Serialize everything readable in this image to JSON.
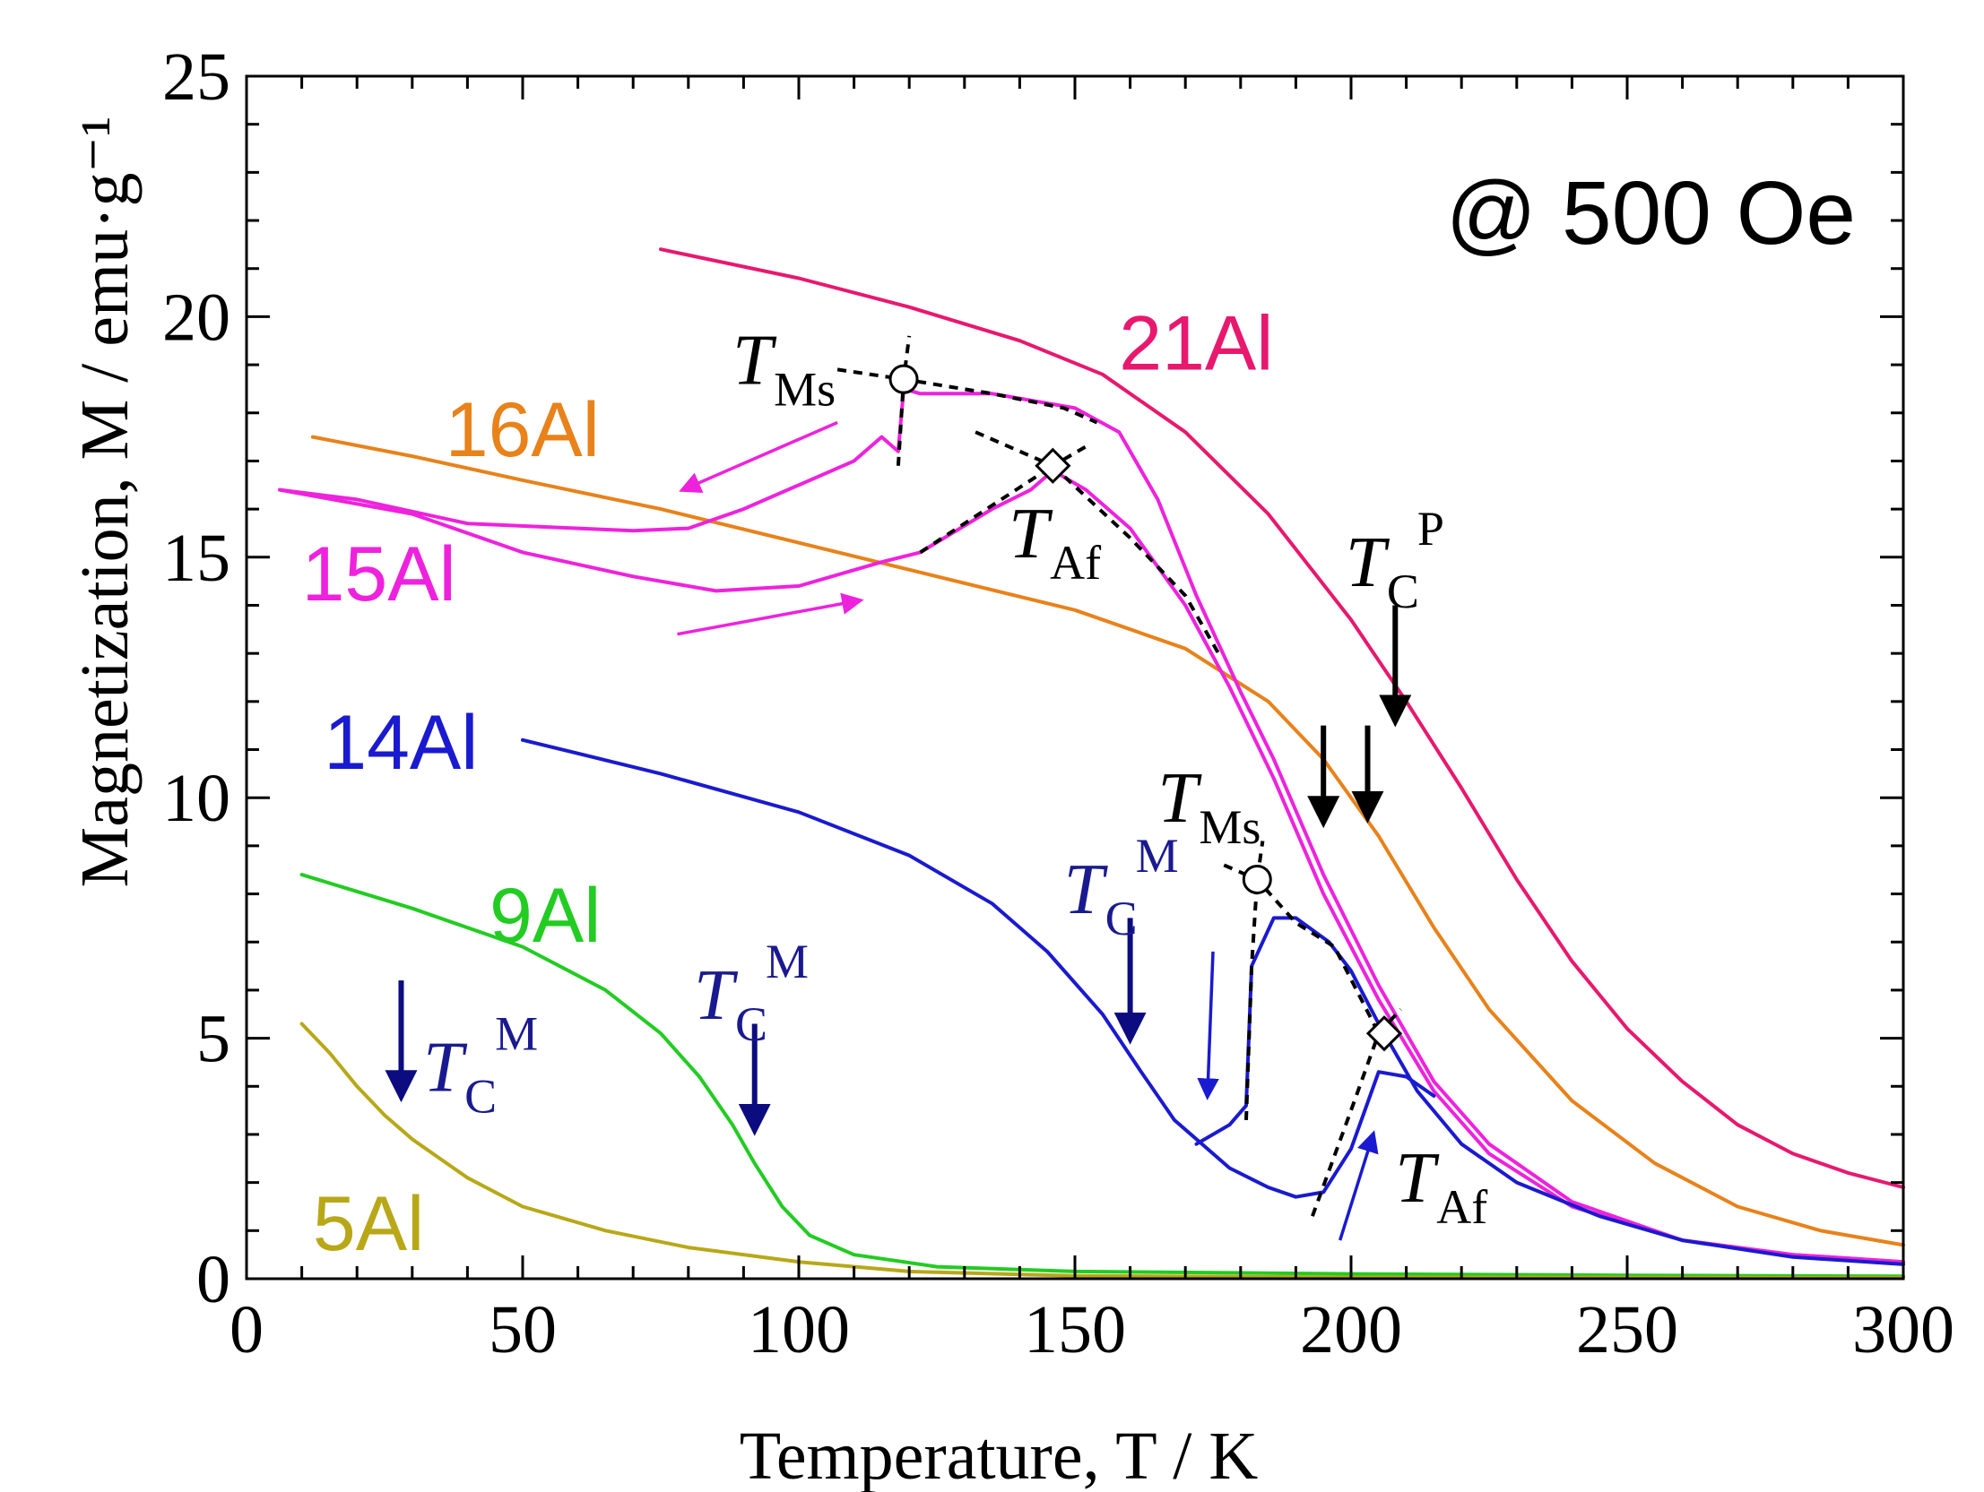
{
  "chart_data": {
    "type": "line",
    "title": "",
    "xlabel": "Temperature, T / K",
    "ylabel": "Magnetization, M / emu·g⁻¹",
    "xlim": [
      0,
      300
    ],
    "ylim": [
      0,
      25
    ],
    "xticks": [
      0,
      50,
      100,
      150,
      200,
      250,
      300
    ],
    "yticks": [
      0,
      5,
      10,
      15,
      20,
      25
    ],
    "field_label": "@ 500 Oe",
    "colors": {
      "21Al": "#e8186e",
      "16Al": "#e8821a",
      "15Al": "#ee22dd",
      "14Al": "#1a1ad0",
      "9Al": "#22cc22",
      "5Al": "#b8a818",
      "arrow_dark": "#0c0c80",
      "arrow_black": "#000000"
    },
    "series": [
      {
        "name": "21Al",
        "label": "21Al",
        "points": [
          [
            75,
            21.4
          ],
          [
            100,
            20.8
          ],
          [
            120,
            20.2
          ],
          [
            140,
            19.5
          ],
          [
            155,
            18.8
          ],
          [
            170,
            17.6
          ],
          [
            185,
            15.9
          ],
          [
            200,
            13.7
          ],
          [
            210,
            12.0
          ],
          [
            220,
            10.2
          ],
          [
            230,
            8.3
          ],
          [
            240,
            6.6
          ],
          [
            250,
            5.2
          ],
          [
            260,
            4.1
          ],
          [
            270,
            3.2
          ],
          [
            280,
            2.6
          ],
          [
            290,
            2.2
          ],
          [
            300,
            1.9
          ]
        ]
      },
      {
        "name": "16Al",
        "label": "16Al",
        "points": [
          [
            12,
            17.5
          ],
          [
            30,
            17.1
          ],
          [
            50,
            16.6
          ],
          [
            75,
            16.0
          ],
          [
            100,
            15.3
          ],
          [
            125,
            14.6
          ],
          [
            150,
            13.9
          ],
          [
            170,
            13.1
          ],
          [
            185,
            12.0
          ],
          [
            195,
            10.8
          ],
          [
            205,
            9.2
          ],
          [
            215,
            7.3
          ],
          [
            225,
            5.6
          ],
          [
            240,
            3.7
          ],
          [
            255,
            2.4
          ],
          [
            270,
            1.5
          ],
          [
            285,
            1.0
          ],
          [
            300,
            0.7
          ]
        ]
      },
      {
        "name": "15Al-heating",
        "label": "15Al",
        "points": [
          [
            6,
            16.4
          ],
          [
            30,
            15.9
          ],
          [
            50,
            15.1
          ],
          [
            70,
            14.6
          ],
          [
            85,
            14.3
          ],
          [
            100,
            14.4
          ],
          [
            115,
            14.9
          ],
          [
            122,
            15.1
          ],
          [
            135,
            16.0
          ],
          [
            142,
            16.4
          ],
          [
            146,
            16.8
          ],
          [
            152,
            16.4
          ],
          [
            160,
            15.6
          ],
          [
            170,
            14.0
          ],
          [
            178,
            12.3
          ],
          [
            186,
            10.4
          ],
          [
            195,
            8.0
          ],
          [
            205,
            5.8
          ],
          [
            215,
            3.9
          ],
          [
            225,
            2.6
          ],
          [
            240,
            1.5
          ],
          [
            260,
            0.8
          ],
          [
            280,
            0.5
          ],
          [
            300,
            0.35
          ]
        ]
      },
      {
        "name": "15Al-cooling",
        "label": "",
        "points": [
          [
            300,
            0.35
          ],
          [
            280,
            0.5
          ],
          [
            260,
            0.8
          ],
          [
            240,
            1.6
          ],
          [
            225,
            2.8
          ],
          [
            215,
            4.1
          ],
          [
            205,
            6.1
          ],
          [
            195,
            8.4
          ],
          [
            186,
            10.8
          ],
          [
            180,
            12.2
          ],
          [
            172,
            14.2
          ],
          [
            165,
            16.2
          ],
          [
            158,
            17.6
          ],
          [
            150,
            18.1
          ],
          [
            135,
            18.4
          ],
          [
            122,
            18.4
          ],
          [
            119,
            18.5
          ],
          [
            118,
            17.2
          ],
          [
            115,
            17.5
          ],
          [
            110,
            17.0
          ],
          [
            100,
            16.5
          ],
          [
            90,
            16.0
          ],
          [
            80,
            15.6
          ],
          [
            70,
            15.55
          ],
          [
            60,
            15.6
          ],
          [
            40,
            15.7
          ],
          [
            20,
            16.2
          ],
          [
            6,
            16.4
          ]
        ]
      },
      {
        "name": "14Al-cooling",
        "label": "14Al",
        "points": [
          [
            50,
            11.2
          ],
          [
            75,
            10.5
          ],
          [
            100,
            9.7
          ],
          [
            120,
            8.8
          ],
          [
            135,
            7.8
          ],
          [
            145,
            6.8
          ],
          [
            155,
            5.5
          ],
          [
            162,
            4.3
          ],
          [
            168,
            3.3
          ],
          [
            172,
            2.9
          ],
          [
            178,
            2.3
          ],
          [
            185,
            1.9
          ],
          [
            190,
            1.7
          ],
          [
            195,
            1.8
          ],
          [
            200,
            2.7
          ],
          [
            205,
            4.3
          ],
          [
            210,
            4.2
          ],
          [
            215,
            3.8
          ]
        ]
      },
      {
        "name": "14Al-heating",
        "label": "",
        "points": [
          [
            172,
            2.8
          ],
          [
            178,
            3.2
          ],
          [
            181,
            3.6
          ],
          [
            182,
            6.5
          ],
          [
            186,
            7.5
          ],
          [
            190,
            7.5
          ],
          [
            196,
            7.0
          ],
          [
            200,
            6.4
          ],
          [
            205,
            5.3
          ],
          [
            212,
            3.9
          ],
          [
            220,
            2.8
          ],
          [
            230,
            2.0
          ],
          [
            245,
            1.3
          ],
          [
            260,
            0.8
          ],
          [
            280,
            0.45
          ],
          [
            300,
            0.3
          ]
        ]
      },
      {
        "name": "9Al",
        "label": "9Al",
        "points": [
          [
            10,
            8.4
          ],
          [
            30,
            7.7
          ],
          [
            50,
            6.9
          ],
          [
            65,
            6.0
          ],
          [
            75,
            5.1
          ],
          [
            82,
            4.2
          ],
          [
            88,
            3.2
          ],
          [
            92,
            2.4
          ],
          [
            97,
            1.5
          ],
          [
            102,
            0.9
          ],
          [
            110,
            0.5
          ],
          [
            125,
            0.25
          ],
          [
            150,
            0.15
          ],
          [
            200,
            0.1
          ],
          [
            250,
            0.07
          ],
          [
            300,
            0.05
          ]
        ]
      },
      {
        "name": "5Al",
        "label": "5Al",
        "points": [
          [
            10,
            5.3
          ],
          [
            15,
            4.7
          ],
          [
            20,
            4.0
          ],
          [
            25,
            3.4
          ],
          [
            30,
            2.9
          ],
          [
            40,
            2.1
          ],
          [
            50,
            1.5
          ],
          [
            65,
            1.0
          ],
          [
            80,
            0.65
          ],
          [
            100,
            0.35
          ],
          [
            120,
            0.15
          ],
          [
            150,
            0.06
          ],
          [
            200,
            0.03
          ],
          [
            300,
            0.02
          ]
        ]
      }
    ],
    "fit_lines": [
      {
        "name": "15Al-TMs-horizontal",
        "points": [
          [
            107,
            18.9
          ],
          [
            119,
            18.7
          ],
          [
            135,
            18.4
          ],
          [
            148,
            18.1
          ],
          [
            154,
            17.8
          ]
        ]
      },
      {
        "name": "15Al-TMs-vertical",
        "points": [
          [
            118,
            16.9
          ],
          [
            119,
            18.7
          ],
          [
            120,
            19.6
          ]
        ]
      },
      {
        "name": "15Al-TAf-left",
        "points": [
          [
            122,
            15.1
          ],
          [
            146,
            16.9
          ]
        ]
      },
      {
        "name": "15Al-TAf-upper",
        "points": [
          [
            132,
            17.6
          ],
          [
            146,
            16.9
          ],
          [
            152,
            17.3
          ]
        ]
      },
      {
        "name": "15Al-TAf-right",
        "points": [
          [
            146,
            16.9
          ],
          [
            160,
            15.4
          ],
          [
            170,
            14.2
          ],
          [
            176,
            13.0
          ]
        ]
      },
      {
        "name": "14Al-TMs-horizontal",
        "points": [
          [
            177,
            8.6
          ],
          [
            183,
            8.3
          ],
          [
            190,
            7.4
          ],
          [
            197,
            6.9
          ],
          [
            205,
            5.1
          ]
        ]
      },
      {
        "name": "14Al-TMs-vertical",
        "points": [
          [
            181,
            3.3
          ],
          [
            182,
            6.5
          ],
          [
            183,
            8.3
          ],
          [
            184,
            9.1
          ]
        ]
      },
      {
        "name": "14Al-TAf-left",
        "points": [
          [
            193,
            1.3
          ],
          [
            200,
            3.5
          ],
          [
            205,
            5.1
          ]
        ]
      },
      {
        "name": "14Al-TAf-upper",
        "points": [
          [
            205,
            5.1
          ],
          [
            209,
            5.6
          ]
        ]
      }
    ],
    "markers": [
      {
        "name": "15Al-TMs",
        "shape": "circle",
        "x": 119,
        "y": 18.7
      },
      {
        "name": "15Al-TAf",
        "shape": "diamond",
        "x": 146,
        "y": 16.9
      },
      {
        "name": "14Al-TMs",
        "shape": "circle",
        "x": 183,
        "y": 8.3
      },
      {
        "name": "14Al-TAf",
        "shape": "diamond",
        "x": 206,
        "y": 5.1
      }
    ],
    "series_labels": [
      {
        "name": "21Al",
        "text": "21Al",
        "x": 158,
        "y": 18.9,
        "color": "21Al"
      },
      {
        "name": "16Al",
        "text": "16Al",
        "x": 36,
        "y": 17.1,
        "color": "16Al"
      },
      {
        "name": "15Al",
        "text": "15Al",
        "x": 10,
        "y": 14.1,
        "color": "15Al"
      },
      {
        "name": "14Al",
        "text": "14Al",
        "x": 14,
        "y": 10.6,
        "color": "14Al"
      },
      {
        "name": "9Al",
        "text": "9Al",
        "x": 44,
        "y": 7.0,
        "color": "9Al"
      },
      {
        "name": "5Al",
        "text": "5Al",
        "x": 12,
        "y": 0.6,
        "color": "5Al"
      }
    ],
    "annotations": [
      {
        "name": "15Al-TMs-label",
        "main": "T",
        "sub": "Ms",
        "sup": "",
        "x": 88,
        "y": 18.6,
        "color": "#000000"
      },
      {
        "name": "15Al-TAf-label",
        "main": "T",
        "sub": "Af",
        "sup": "",
        "x": 138,
        "y": 15.0,
        "color": "#000000"
      },
      {
        "name": "TCP-label",
        "main": "T",
        "sub": "C",
        "sup": "P",
        "x": 199,
        "y": 14.4,
        "color": "#000000"
      },
      {
        "name": "14Al-TMs-label",
        "main": "T",
        "sub": "Ms",
        "sup": "",
        "x": 165,
        "y": 9.5,
        "color": "#000000"
      },
      {
        "name": "14Al-TAf-label",
        "main": "T",
        "sub": "Af",
        "sup": "",
        "x": 208,
        "y": 1.6,
        "color": "#000000"
      },
      {
        "name": "14Al-TCM-label",
        "main": "T",
        "sub": "C",
        "sup": "M",
        "x": 148,
        "y": 7.6,
        "color": "#1a1a90"
      },
      {
        "name": "9Al-TCM-label",
        "main": "T",
        "sub": "C",
        "sup": "M",
        "x": 81,
        "y": 5.4,
        "color": "#1a1a90"
      },
      {
        "name": "5Al-TCM-label",
        "main": "T",
        "sub": "C",
        "sup": "M",
        "x": 32,
        "y": 3.9,
        "color": "#1a1a90"
      }
    ],
    "arrows": [
      {
        "name": "TCP-arrow",
        "x1": 208,
        "y1": 14.0,
        "x2": 208,
        "y2": 11.6,
        "color": "arrow_black",
        "style": "thick"
      },
      {
        "name": "16Al-arrow-left",
        "x1": 195,
        "y1": 11.5,
        "x2": 195,
        "y2": 9.5,
        "color": "arrow_black",
        "style": "thick"
      },
      {
        "name": "16Al-arrow-right",
        "x1": 203,
        "y1": 11.5,
        "x2": 203,
        "y2": 9.6,
        "color": "arrow_black",
        "style": "thick"
      },
      {
        "name": "14Al-TCM-arrow",
        "x1": 160,
        "y1": 7.5,
        "x2": 160,
        "y2": 5.0,
        "color": "arrow_dark",
        "style": "thick"
      },
      {
        "name": "9Al-TCM-arrow",
        "x1": 92,
        "y1": 5.3,
        "x2": 92,
        "y2": 3.1,
        "color": "arrow_dark",
        "style": "thick"
      },
      {
        "name": "5Al-TCM-arrow",
        "x1": 28,
        "y1": 6.2,
        "x2": 28,
        "y2": 3.8,
        "color": "arrow_dark",
        "style": "thick"
      },
      {
        "name": "15Al-cooling-direction",
        "x1": 107,
        "y1": 17.8,
        "x2": 79,
        "y2": 16.4,
        "color": "15Al",
        "style": "thin"
      },
      {
        "name": "15Al-heating-direction",
        "x1": 78,
        "y1": 13.4,
        "x2": 111,
        "y2": 14.1,
        "color": "15Al",
        "style": "thin"
      },
      {
        "name": "14Al-cooling-direction",
        "x1": 175,
        "y1": 6.8,
        "x2": 174,
        "y2": 3.8,
        "color": "14Al",
        "style": "thin"
      },
      {
        "name": "14Al-heating-direction",
        "x1": 198,
        "y1": 0.8,
        "x2": 204,
        "y2": 3.0,
        "color": "14Al",
        "style": "thin"
      }
    ]
  }
}
